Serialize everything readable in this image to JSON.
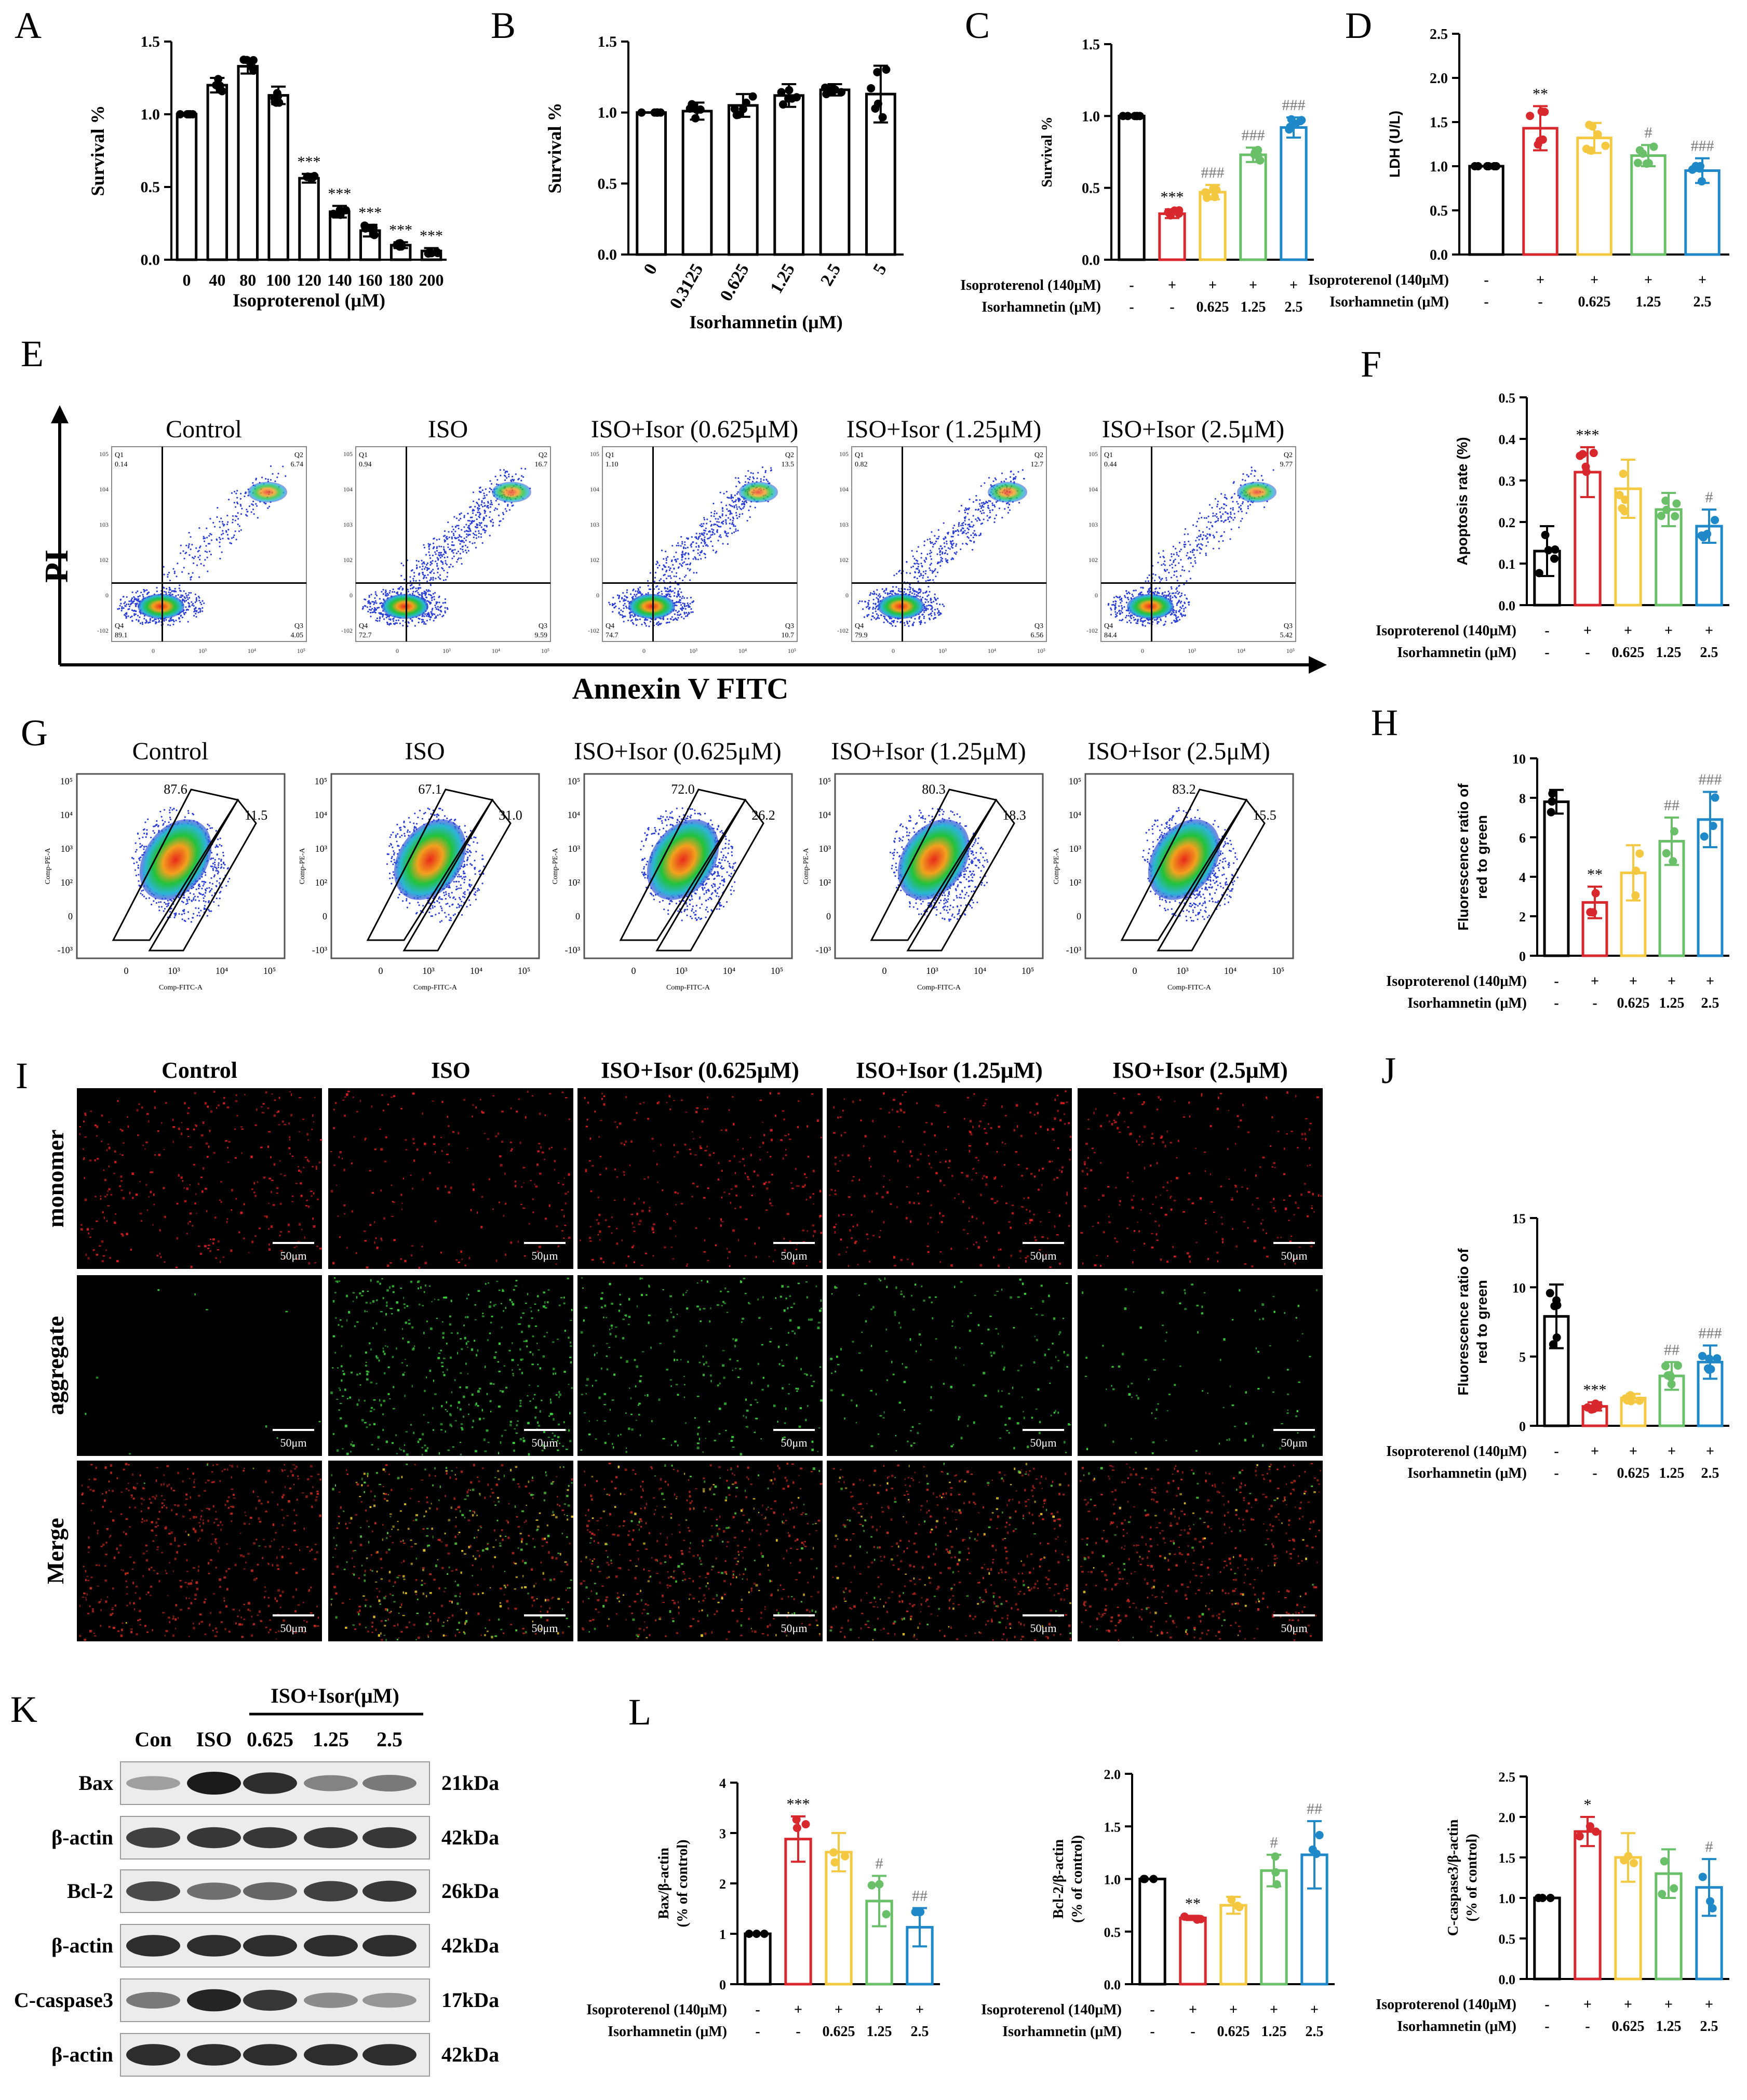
{
  "colors": {
    "control": "#000000",
    "iso": "#d9272e",
    "d0625": "#f5c842",
    "d125": "#6abf69",
    "d25": "#1f88c9",
    "flow_blue": "#2b3fd6",
    "flow_green": "#22c23b",
    "flow_red": "#e8291c"
  },
  "panels": {
    "A": "A",
    "B": "B",
    "C": "C",
    "D": "D",
    "E": "E",
    "F": "F",
    "G": "G",
    "H": "H",
    "I": "I",
    "J": "J",
    "K": "K",
    "L": "L"
  },
  "treatment_rows": {
    "iso_label": "Isoproterenol (140μM)",
    "isor_label": "Isorhamnetin (μM)",
    "iso_signs": [
      "-",
      "+",
      "+",
      "+",
      "+"
    ],
    "isor_values": [
      "-",
      "-",
      "0.625",
      "1.25",
      "2.5"
    ]
  },
  "group_titles": [
    "Control",
    "ISO",
    "ISO+Isor (0.625μM)",
    "ISO+Isor (1.25μM)",
    "ISO+Isor (2.5μM)"
  ],
  "chart_data": [
    {
      "id": "A",
      "type": "bar",
      "ylabel": "Survival %",
      "xlabel": "Isoproterenol (μM)",
      "categories": [
        "0",
        "40",
        "80",
        "100",
        "120",
        "140",
        "160",
        "180",
        "200"
      ],
      "values": [
        1.0,
        1.2,
        1.33,
        1.13,
        0.56,
        0.33,
        0.2,
        0.1,
        0.06
      ],
      "errors": [
        0.0,
        0.05,
        0.05,
        0.06,
        0.03,
        0.04,
        0.04,
        0.02,
        0.02
      ],
      "annotations": [
        "",
        "",
        "",
        "",
        "***",
        "***",
        "***",
        "***",
        "***"
      ],
      "ylim": [
        0,
        1.5
      ],
      "yticks": [
        "0.0",
        "0.5",
        "1.0",
        "1.5"
      ]
    },
    {
      "id": "B",
      "type": "bar",
      "ylabel": "Survival %",
      "xlabel": "Isorhamnetin (μM)",
      "categories": [
        "0",
        "0.3125",
        "0.625",
        "1.25",
        "2.5",
        "5"
      ],
      "values": [
        1.0,
        1.01,
        1.05,
        1.12,
        1.16,
        1.13
      ],
      "errors": [
        0.0,
        0.06,
        0.08,
        0.08,
        0.04,
        0.2
      ],
      "annotations": [
        "",
        "",
        "",
        "",
        "",
        ""
      ],
      "ylim": [
        0,
        1.5
      ],
      "yticks": [
        "0.0",
        "0.5",
        "1.0",
        "1.5"
      ]
    },
    {
      "id": "C",
      "type": "bar",
      "ylabel": "Survival %",
      "values": [
        1.0,
        0.32,
        0.47,
        0.73,
        0.92
      ],
      "errors": [
        0.0,
        0.03,
        0.05,
        0.05,
        0.07
      ],
      "annotations": [
        "",
        "***",
        "###",
        "###",
        "###"
      ],
      "ylim": [
        0,
        1.5
      ],
      "yticks": [
        "0.0",
        "0.5",
        "1.0",
        "1.5"
      ]
    },
    {
      "id": "D",
      "type": "bar",
      "ylabel": "LDH (U/L)",
      "values": [
        1.0,
        1.43,
        1.32,
        1.12,
        0.95
      ],
      "errors": [
        0.0,
        0.25,
        0.17,
        0.12,
        0.14
      ],
      "annotations": [
        "",
        "**",
        "",
        "#",
        "###"
      ],
      "ylim": [
        0,
        2.5
      ],
      "yticks": [
        "0.0",
        "0.5",
        "1.0",
        "1.5",
        "2.0",
        "2.5"
      ]
    },
    {
      "id": "F",
      "type": "bar",
      "ylabel": "Apoptosis rate (%)",
      "values": [
        0.13,
        0.32,
        0.28,
        0.23,
        0.19
      ],
      "errors": [
        0.06,
        0.06,
        0.07,
        0.04,
        0.04
      ],
      "annotations": [
        "",
        "***",
        "",
        "",
        "#"
      ],
      "ylim": [
        0,
        0.5
      ],
      "yticks": [
        "0.0",
        "0.1",
        "0.2",
        "0.3",
        "0.4",
        "0.5"
      ]
    },
    {
      "id": "H",
      "type": "bar",
      "ylabel": "Fluorescence  ratio of red to green",
      "values": [
        7.8,
        2.7,
        4.2,
        5.8,
        6.9
      ],
      "errors": [
        0.6,
        0.8,
        1.4,
        1.2,
        1.4
      ],
      "annotations": [
        "",
        "**",
        "",
        "##",
        "###"
      ],
      "ylim": [
        0,
        10
      ],
      "yticks": [
        "0",
        "2",
        "4",
        "6",
        "8",
        "10"
      ]
    },
    {
      "id": "J",
      "type": "bar",
      "ylabel": "Fluorescence  ratio of red to green",
      "values": [
        7.9,
        1.4,
        2.0,
        3.6,
        4.6
      ],
      "errors": [
        2.3,
        0.3,
        0.3,
        1.0,
        1.2
      ],
      "annotations": [
        "",
        "***",
        "",
        "##",
        "###"
      ],
      "ylim": [
        0,
        15
      ],
      "yticks": [
        "0",
        "5",
        "10",
        "15"
      ]
    },
    {
      "id": "L1",
      "type": "bar",
      "ylabel": "Bax/β-actin (% of control)",
      "values": [
        1.0,
        2.88,
        2.62,
        1.65,
        1.13
      ],
      "errors": [
        0.0,
        0.45,
        0.38,
        0.5,
        0.38
      ],
      "annotations": [
        "",
        "***",
        "",
        "#",
        "##"
      ],
      "ylim": [
        0,
        4
      ],
      "yticks": [
        "0",
        "1",
        "2",
        "3",
        "4"
      ]
    },
    {
      "id": "L2",
      "type": "bar",
      "ylabel": "Bcl-2/β-actin (% of control)",
      "values": [
        1.0,
        0.63,
        0.75,
        1.08,
        1.23
      ],
      "errors": [
        0.0,
        0.02,
        0.08,
        0.15,
        0.32
      ],
      "annotations": [
        "",
        "**",
        "",
        "#",
        "##"
      ],
      "ylim": [
        0,
        2.0
      ],
      "yticks": [
        "0.0",
        "0.5",
        "1.0",
        "1.5",
        "2.0"
      ]
    },
    {
      "id": "L3",
      "type": "bar",
      "ylabel": "C-caspase3/β-actin (% of control)",
      "values": [
        1.0,
        1.82,
        1.5,
        1.3,
        1.13
      ],
      "errors": [
        0.0,
        0.18,
        0.3,
        0.3,
        0.35
      ],
      "annotations": [
        "",
        "*",
        "",
        "",
        "#"
      ],
      "ylim": [
        0,
        2.5
      ],
      "yticks": [
        "0.0",
        "0.5",
        "1.0",
        "1.5",
        "2.0",
        "2.5"
      ]
    }
  ],
  "flow_E": {
    "y_axis_label": "PI",
    "x_axis_label": "Annexin V FITC",
    "quadrants": [
      {
        "q1": "0.14",
        "q2": "6.74",
        "q3": "4.05",
        "q4": "89.1"
      },
      {
        "q1": "0.94",
        "q2": "16.7",
        "q3": "9.59",
        "q4": "72.7"
      },
      {
        "q1": "1.10",
        "q2": "13.5",
        "q3": "10.7",
        "q4": "74.7"
      },
      {
        "q1": "0.82",
        "q2": "12.7",
        "q3": "6.56",
        "q4": "79.9"
      },
      {
        "q1": "0.44",
        "q2": "9.77",
        "q3": "5.42",
        "q4": "84.4"
      }
    ],
    "q_names": [
      "Q1",
      "Q2",
      "Q3",
      "Q4"
    ]
  },
  "flow_G": {
    "y_axis_label": "Comp-PE-A",
    "x_axis_label": "Comp-FITC-A",
    "gates": [
      {
        "upper": "87.6",
        "lower": "11.5"
      },
      {
        "upper": "67.1",
        "lower": "31.0"
      },
      {
        "upper": "72.0",
        "lower": "26.2"
      },
      {
        "upper": "80.3",
        "lower": "18.3"
      },
      {
        "upper": "83.2",
        "lower": "15.5"
      }
    ]
  },
  "micro_I": {
    "col_titles": [
      "Control",
      "ISO",
      "ISO+Isor (0.625μM)",
      "ISO+Isor (1.25μM)",
      "ISO+Isor (2.5μM)"
    ],
    "row_labels": [
      "monomer",
      "aggregate",
      "Merge"
    ],
    "scale_bar": "50μm"
  },
  "western_K": {
    "header": "ISO+Isor(μM)",
    "lanes": [
      "Con",
      "ISO",
      "0.625",
      "1.25",
      "2.5"
    ],
    "bands": [
      {
        "name": "Bax",
        "kda": "21kDa",
        "intensity": [
          0.3,
          1.0,
          0.9,
          0.45,
          0.5
        ]
      },
      {
        "name": "β-actin",
        "kda": "42kDa",
        "intensity": [
          0.8,
          0.85,
          0.85,
          0.85,
          0.85
        ]
      },
      {
        "name": "Bcl-2",
        "kda": "26kDa",
        "intensity": [
          0.75,
          0.55,
          0.6,
          0.8,
          0.85
        ]
      },
      {
        "name": "β-actin",
        "kda": "42kDa",
        "intensity": [
          0.9,
          0.9,
          0.9,
          0.9,
          0.9
        ]
      },
      {
        "name": "C-caspase3",
        "kda": "17kDa",
        "intensity": [
          0.5,
          0.95,
          0.85,
          0.4,
          0.35
        ]
      },
      {
        "name": "β-actin",
        "kda": "42kDa",
        "intensity": [
          0.9,
          0.9,
          0.9,
          0.9,
          0.9
        ]
      }
    ]
  }
}
